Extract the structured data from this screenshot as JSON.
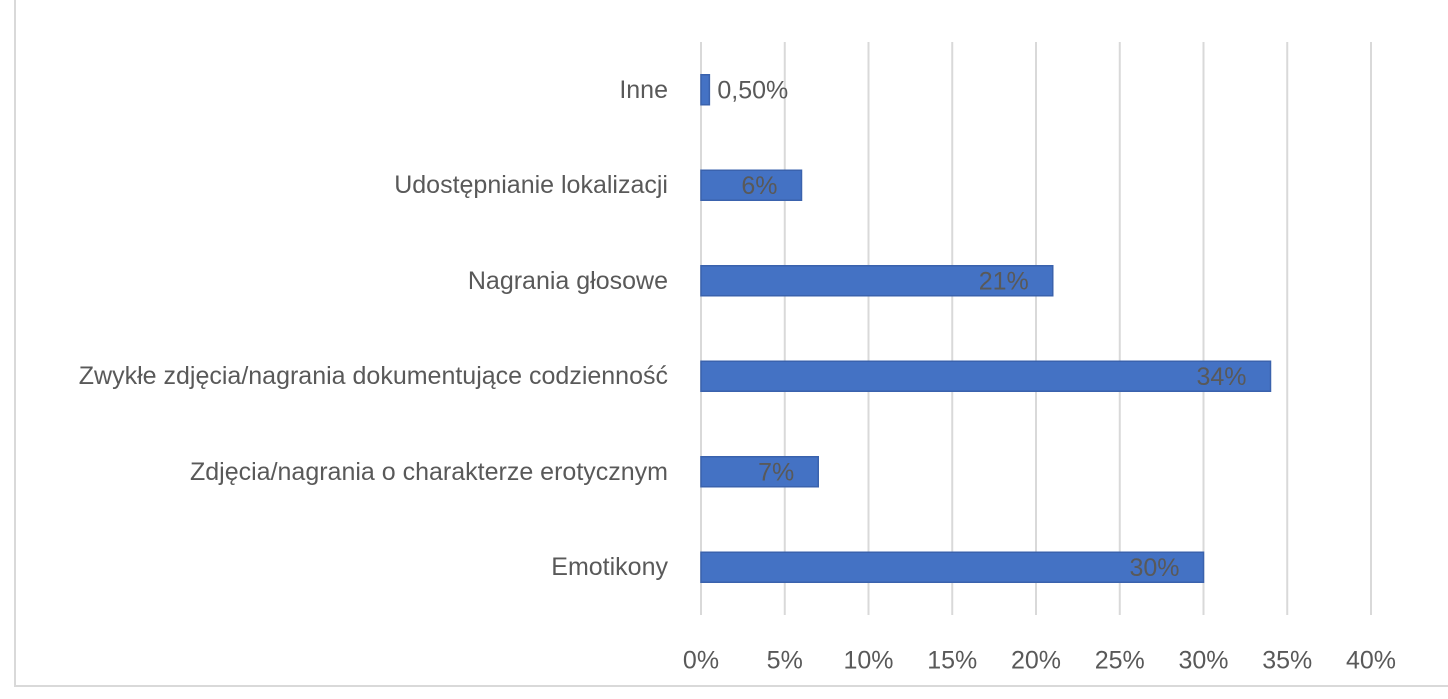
{
  "chart_data": {
    "type": "bar",
    "orientation": "horizontal",
    "categories": [
      "Inne",
      "Udostępnianie lokalizacji",
      "Nagrania głosowe",
      "Zwykłe zdjęcia/nagrania dokumentujące codzienność",
      "Zdjęcia/nagrania o charakterze erotycznym",
      "Emotikony"
    ],
    "values": [
      0.5,
      6,
      21,
      34,
      7,
      30
    ],
    "value_labels": [
      "0,50%",
      "6%",
      "21%",
      "34%",
      "7%",
      "30%"
    ],
    "color": "#4472c4",
    "xlim": [
      0,
      40
    ],
    "xticks": [
      {
        "value": 0,
        "label": "0%"
      },
      {
        "value": 5,
        "label": "5%"
      },
      {
        "value": 10,
        "label": "10%"
      },
      {
        "value": 15,
        "label": "15%"
      },
      {
        "value": 20,
        "label": "20%"
      },
      {
        "value": 25,
        "label": "25%"
      },
      {
        "value": 30,
        "label": "30%"
      },
      {
        "value": 35,
        "label": "35%"
      },
      {
        "value": 40,
        "label": "40%"
      }
    ],
    "grid": true
  }
}
